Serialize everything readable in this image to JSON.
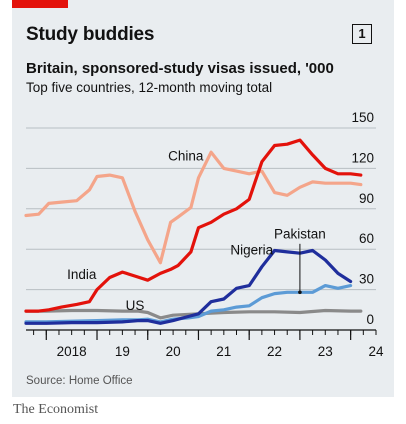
{
  "header": {
    "title": "Study buddies",
    "badge": "1",
    "subtitle": "Britain, sponsored-study visas issued, '000",
    "description": "Top five countries, 12-month moving total"
  },
  "source": "Source: Home Office",
  "footer": "The Economist",
  "colors": {
    "China": "#f4a58a",
    "India": "#e3120b",
    "Nigeria": "#1f2e9c",
    "Pakistan": "#5c9bd6",
    "US": "#8a8a8a",
    "grid": "#b8bec3",
    "axis": "#121212",
    "accent": "#e3120b"
  },
  "chart_data": {
    "type": "line",
    "ylim": [
      0,
      150
    ],
    "yticks": [
      0,
      30,
      60,
      90,
      120,
      150
    ],
    "xlim": [
      2017.6,
      2024.5
    ],
    "xticks": [
      {
        "label": "2018",
        "x": 2018.0
      },
      {
        "label": "19",
        "x": 2019.0
      },
      {
        "label": "20",
        "x": 2020.0
      },
      {
        "label": "21",
        "x": 2021.0
      },
      {
        "label": "22",
        "x": 2022.0
      },
      {
        "label": "23",
        "x": 2023.0
      },
      {
        "label": "24",
        "x": 2024.0
      }
    ],
    "series": [
      {
        "name": "US",
        "x": [
          2017.6,
          2018.0,
          2018.5,
          2019.0,
          2019.5,
          2019.8,
          2020.0,
          2020.25,
          2020.5,
          2021.0,
          2021.5,
          2022.0,
          2022.5,
          2023.0,
          2023.5,
          2024.0,
          2024.2
        ],
        "y": [
          14,
          14,
          14.5,
          14.5,
          14,
          14,
          13,
          9,
          11,
          12,
          13,
          13.5,
          13.5,
          13,
          14.5,
          14,
          14
        ]
      },
      {
        "name": "Pakistan",
        "x": [
          2017.6,
          2018.0,
          2018.5,
          2019.0,
          2019.5,
          2019.8,
          2020.0,
          2020.25,
          2020.5,
          2020.8,
          2021.0,
          2021.25,
          2021.5,
          2021.75,
          2022.0,
          2022.25,
          2022.5,
          2022.75,
          2023.0,
          2023.25,
          2023.5,
          2023.75,
          2024.0
        ],
        "y": [
          6,
          6,
          6.5,
          7,
          7.5,
          7.5,
          8,
          6,
          8,
          9,
          10,
          14,
          15,
          17,
          18,
          24,
          27,
          28,
          28,
          28,
          33,
          31,
          33
        ]
      },
      {
        "name": "Nigeria",
        "x": [
          2017.6,
          2018.0,
          2018.5,
          2019.0,
          2019.5,
          2019.8,
          2020.0,
          2020.25,
          2020.5,
          2020.8,
          2021.0,
          2021.25,
          2021.5,
          2021.75,
          2022.0,
          2022.25,
          2022.5,
          2022.75,
          2023.0,
          2023.25,
          2023.5,
          2023.75,
          2024.0
        ],
        "y": [
          5,
          5,
          5.5,
          5.5,
          6,
          7,
          7,
          5,
          7,
          10,
          12,
          21,
          23,
          31,
          33,
          47,
          59,
          58,
          57,
          59,
          52,
          42,
          36
        ]
      },
      {
        "name": "China",
        "x": [
          2017.6,
          2017.85,
          2018.05,
          2018.3,
          2018.6,
          2018.85,
          2019.0,
          2019.25,
          2019.5,
          2019.75,
          2020.0,
          2020.25,
          2020.45,
          2020.6,
          2020.85,
          2021.0,
          2021.25,
          2021.5,
          2021.75,
          2022.0,
          2022.25,
          2022.5,
          2022.75,
          2023.0,
          2023.25,
          2023.5,
          2023.75,
          2024.0,
          2024.2
        ],
        "y": [
          85,
          86,
          94,
          95,
          96,
          104,
          114,
          115,
          113,
          88,
          67,
          50,
          80,
          84,
          91,
          113,
          132,
          120,
          118,
          116,
          118,
          102,
          100,
          106,
          110,
          109,
          109,
          109,
          108
        ]
      },
      {
        "name": "India",
        "x": [
          2017.6,
          2017.85,
          2018.05,
          2018.3,
          2018.6,
          2018.85,
          2019.0,
          2019.25,
          2019.5,
          2019.75,
          2020.0,
          2020.25,
          2020.45,
          2020.6,
          2020.85,
          2021.0,
          2021.25,
          2021.5,
          2021.75,
          2022.0,
          2022.25,
          2022.5,
          2022.75,
          2023.0,
          2023.25,
          2023.5,
          2023.75,
          2024.0,
          2024.2
        ],
        "y": [
          14,
          14,
          15,
          17,
          19,
          21,
          30,
          39,
          43,
          40,
          37,
          42,
          45,
          48,
          58,
          76,
          80,
          86,
          90,
          97,
          125,
          137,
          138,
          141,
          130,
          120,
          116,
          116,
          115
        ]
      }
    ],
    "labels": [
      {
        "text": "China",
        "series": "China",
        "x": 2020.75,
        "y": 126
      },
      {
        "text": "India",
        "series": "India",
        "x": 2018.7,
        "y": 38
      },
      {
        "text": "US",
        "series": "US",
        "x": 2019.75,
        "y": 15
      },
      {
        "text": "Nigeria",
        "series": "Nigeria",
        "x": 2022.05,
        "y": 56
      },
      {
        "text": "Pakistan",
        "series": "Pakistan",
        "x": 2023.0,
        "y": 68
      }
    ]
  }
}
